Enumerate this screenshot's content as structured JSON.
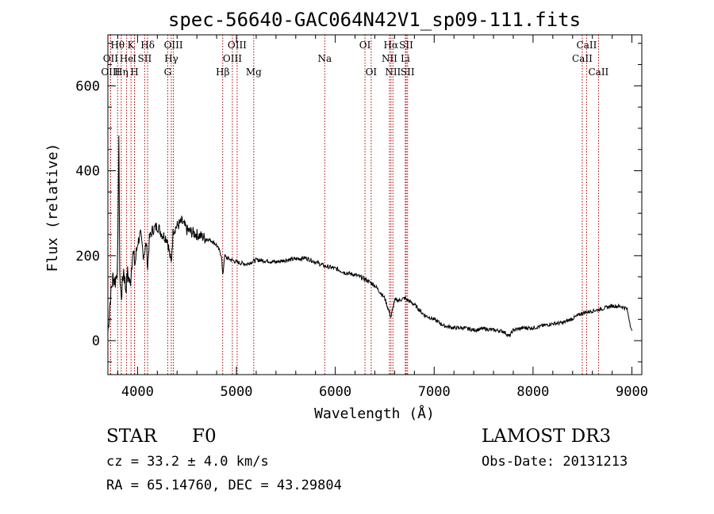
{
  "chart_data": {
    "type": "line",
    "title": "spec-56640-GAC064N42V1_sp09-111.fits",
    "xlabel": "Wavelength (Å)",
    "ylabel": "Flux (relative)",
    "xlim": [
      3700,
      9100
    ],
    "ylim": [
      -80,
      720
    ],
    "x_ticks": [
      4000,
      5000,
      6000,
      7000,
      8000,
      9000
    ],
    "x_tick_labels": [
      "4000",
      "5000",
      "6000",
      "7000",
      "8000",
      "9000"
    ],
    "y_ticks": [
      0,
      200,
      400,
      600
    ],
    "y_tick_labels": [
      "0",
      "200",
      "400",
      "600"
    ],
    "grid": false,
    "line_color": "#000000",
    "marker_color": "#aa0000",
    "series": [
      {
        "name": "flux",
        "x": [
          3700,
          3725,
          3750,
          3775,
          3800,
          3810,
          3820,
          3835,
          3860,
          3880,
          3900,
          3925,
          3950,
          3975,
          4000,
          4030,
          4060,
          4090,
          4102,
          4120,
          4150,
          4200,
          4250,
          4300,
          4340,
          4360,
          4400,
          4450,
          4500,
          4550,
          4600,
          4650,
          4700,
          4750,
          4800,
          4850,
          4861,
          4880,
          4900,
          4950,
          5000,
          5100,
          5200,
          5300,
          5400,
          5500,
          5600,
          5700,
          5800,
          5900,
          6000,
          6100,
          6200,
          6300,
          6400,
          6500,
          6563,
          6600,
          6650,
          6700,
          6800,
          6900,
          7000,
          7100,
          7200,
          7300,
          7400,
          7500,
          7600,
          7700,
          7760,
          7800,
          7900,
          8000,
          8100,
          8200,
          8300,
          8400,
          8500,
          8600,
          8700,
          8800,
          8900,
          8950,
          9000
        ],
        "values": [
          20,
          100,
          150,
          140,
          180,
          500,
          150,
          100,
          170,
          120,
          160,
          130,
          210,
          180,
          230,
          250,
          200,
          230,
          170,
          240,
          260,
          270,
          250,
          240,
          180,
          260,
          270,
          280,
          260,
          255,
          250,
          245,
          240,
          235,
          225,
          200,
          150,
          200,
          195,
          190,
          185,
          180,
          190,
          188,
          185,
          190,
          192,
          195,
          185,
          175,
          170,
          160,
          155,
          145,
          130,
          100,
          55,
          95,
          95,
          100,
          85,
          60,
          50,
          35,
          30,
          30,
          25,
          28,
          25,
          22,
          10,
          25,
          30,
          30,
          35,
          40,
          42,
          52,
          65,
          70,
          75,
          82,
          80,
          75,
          20
        ]
      }
    ],
    "line_markers": [
      {
        "label": "Hθ",
        "x": 3798,
        "row": 0
      },
      {
        "label": "OII",
        "x": 3727,
        "row": 1
      },
      {
        "label": "OIII",
        "x": 3727,
        "row": 2
      },
      {
        "label": "He",
        "x": 3889,
        "row": 1
      },
      {
        "label": "Hη",
        "x": 3835,
        "row": 2
      },
      {
        "label": "K",
        "x": 3934,
        "row": 0
      },
      {
        "label": "I",
        "x": 3970,
        "row": 1
      },
      {
        "label": "H",
        "x": 3969,
        "row": 2
      },
      {
        "label": "Hδ",
        "x": 4102,
        "row": 0
      },
      {
        "label": "SII",
        "x": 4072,
        "row": 1
      },
      {
        "label": "OIII",
        "x": 4363,
        "row": 0
      },
      {
        "label": "Hγ",
        "x": 4341,
        "row": 1
      },
      {
        "label": "G",
        "x": 4305,
        "row": 2
      },
      {
        "label": "Hβ",
        "x": 4861,
        "row": 2
      },
      {
        "label": "OIII",
        "x": 5007,
        "row": 0
      },
      {
        "label": "OIII",
        "x": 4959,
        "row": 1
      },
      {
        "label": "Mg",
        "x": 5175,
        "row": 2
      },
      {
        "label": "Na",
        "x": 5893,
        "row": 1
      },
      {
        "label": "OI",
        "x": 6300,
        "row": 0
      },
      {
        "label": "OI",
        "x": 6363,
        "row": 2
      },
      {
        "label": "Hα",
        "x": 6563,
        "row": 0
      },
      {
        "label": "NII",
        "x": 6548,
        "row": 1
      },
      {
        "label": "NII",
        "x": 6583,
        "row": 2
      },
      {
        "label": "SII",
        "x": 6717,
        "row": 0
      },
      {
        "label": "Li",
        "x": 6708,
        "row": 1
      },
      {
        "label": "SII",
        "x": 6731,
        "row": 2
      },
      {
        "label": "CaII",
        "x": 8542,
        "row": 0
      },
      {
        "label": "CaII",
        "x": 8498,
        "row": 1
      },
      {
        "label": "CaII",
        "x": 8662,
        "row": 2
      }
    ]
  },
  "footer": {
    "object_class": "STAR",
    "subclass": "F0",
    "survey": "LAMOST DR3",
    "cz": "cz = 33.2 ± 4.0 km/s",
    "obs_date": "Obs-Date: 20131213",
    "coords": "RA =  65.14760, DEC =  43.29804"
  }
}
